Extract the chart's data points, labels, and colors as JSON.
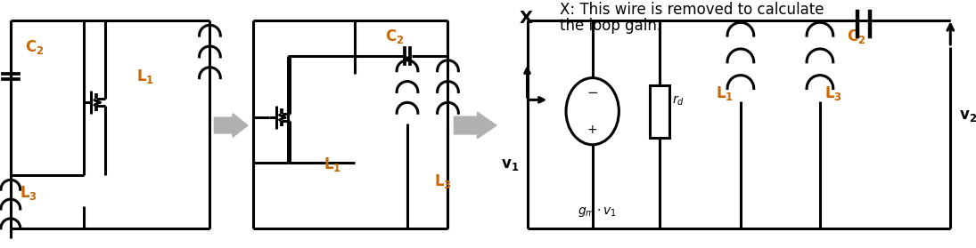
{
  "bg_color": "#ffffff",
  "line_color": "#000000",
  "label_color": "#cc6600",
  "text_color": "#000000",
  "lw": 2.2,
  "title_line1": "X: This wire is removed to calculate",
  "title_line2": "the loop gain.",
  "title_fontsize": 12,
  "label_fontsize": 12,
  "figsize": [
    10.95,
    2.79
  ],
  "dpi": 100
}
